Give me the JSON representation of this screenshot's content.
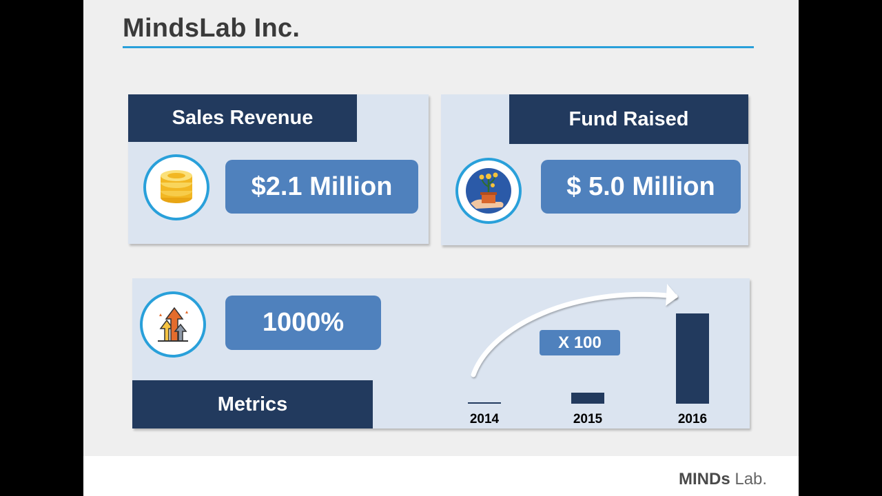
{
  "slide": {
    "title": "MindsLab Inc."
  },
  "sales_revenue": {
    "label": "Sales Revenue",
    "value": "$2.1 Million",
    "icon": "coins-icon"
  },
  "fund_raised": {
    "label": "Fund Raised",
    "value": "$ 5.0 Million",
    "icon": "plant-money-icon"
  },
  "metrics": {
    "label": "Metrics",
    "growth_value": "1000%",
    "icon": "growth-arrows-icon",
    "multiplier_label": "X 100"
  },
  "chart_data": {
    "type": "bar",
    "categories": [
      "2014",
      "2015",
      "2016"
    ],
    "values": [
      1,
      12,
      100
    ],
    "title": "",
    "xlabel": "",
    "ylabel": "",
    "ylim": [
      0,
      100
    ],
    "annotation": "X 100"
  },
  "footer": {
    "logo_bold": "MINDs",
    "logo_light": "Lab."
  },
  "colors": {
    "header_navy": "#223a5e",
    "pill_blue": "#4f81bd",
    "panel_bg": "#dbe4f0",
    "accent_cyan": "#29a0da"
  }
}
